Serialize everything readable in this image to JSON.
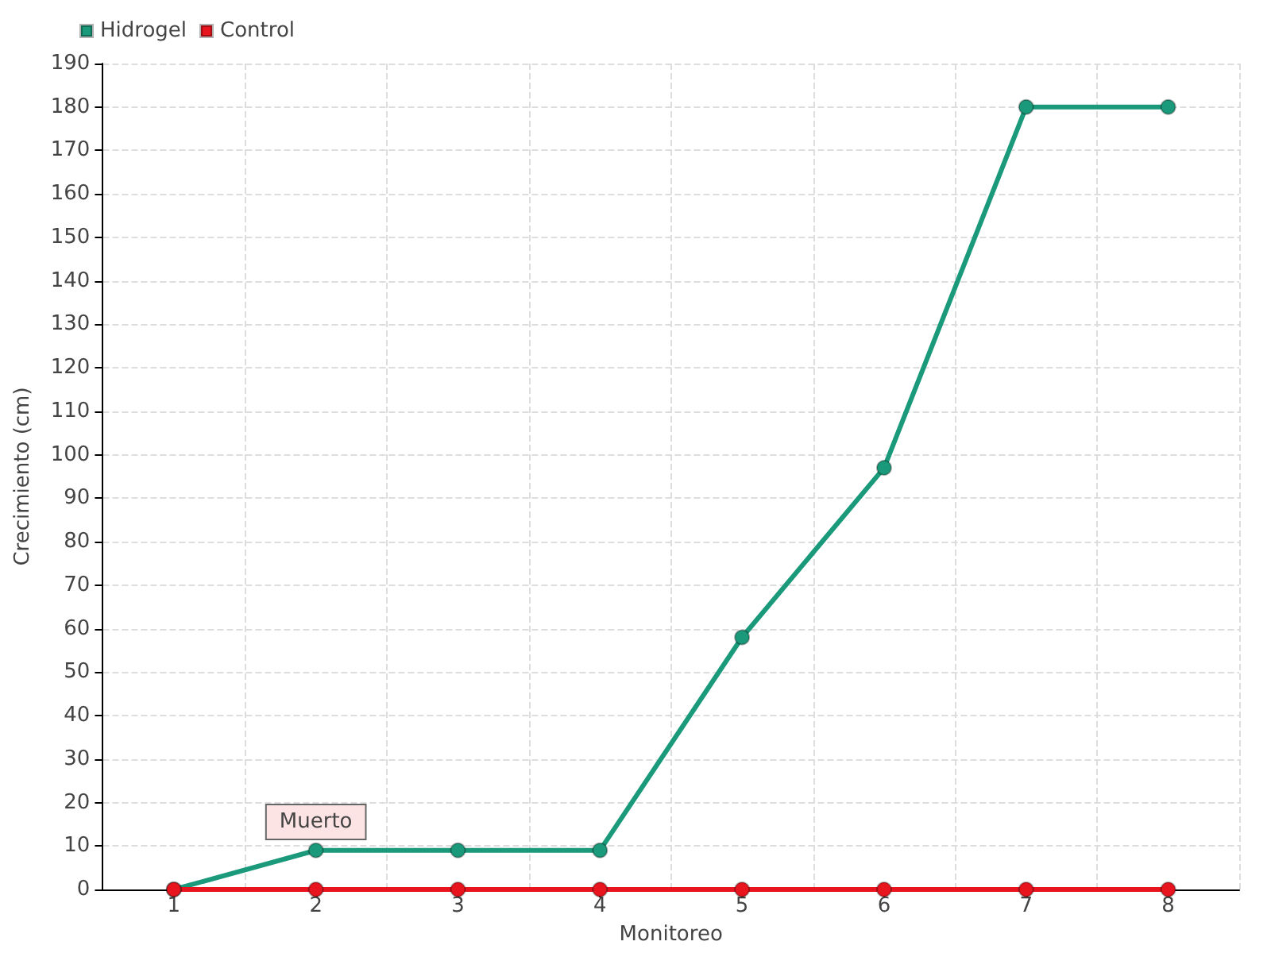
{
  "chart_data": {
    "type": "line",
    "xlabel": "Monitoreo",
    "ylabel": "Crecimiento (cm)",
    "categories": [
      "1",
      "2",
      "3",
      "4",
      "5",
      "6",
      "7",
      "8"
    ],
    "series": [
      {
        "name": "Hidrogel",
        "color": "#1a9a7a",
        "values": [
          0,
          9,
          9,
          9,
          58,
          97,
          180,
          180
        ]
      },
      {
        "name": "Control",
        "color": "#e8141e",
        "values": [
          0,
          0,
          0,
          0,
          0,
          0,
          0,
          0
        ]
      }
    ],
    "ylim": [
      0,
      190
    ],
    "yticks": [
      0,
      10,
      20,
      30,
      40,
      50,
      60,
      70,
      80,
      90,
      100,
      110,
      120,
      130,
      140,
      150,
      160,
      170,
      180,
      190
    ],
    "grid": true,
    "legend": "top left",
    "marker": "circle",
    "line_style": "solid",
    "annotations": [
      {
        "text": "Muerto",
        "x": "2",
        "y": 0
      }
    ]
  }
}
